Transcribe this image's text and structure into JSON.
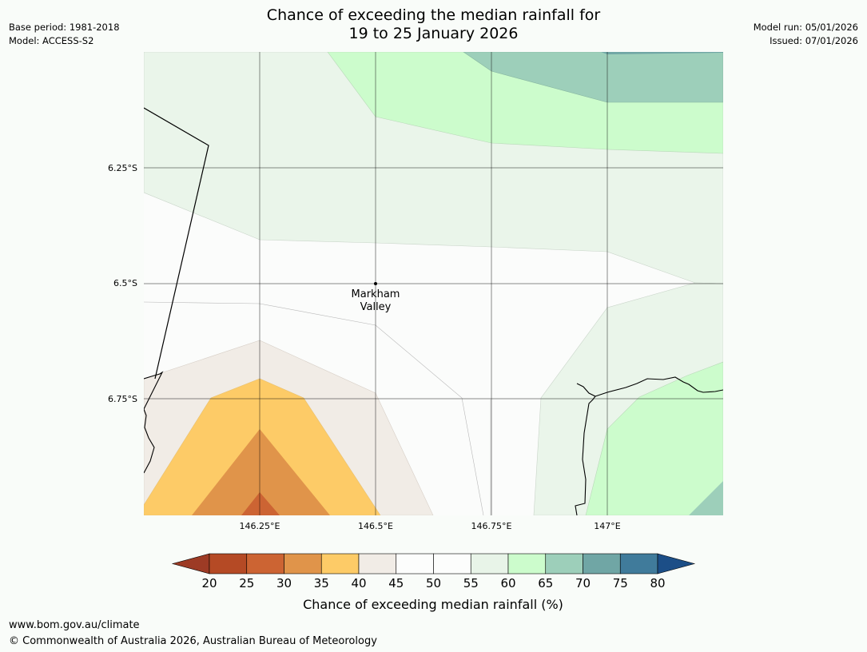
{
  "header": {
    "title_line1": "Chance of exceeding the median rainfall for",
    "title_line2": "19 to 25 January 2026",
    "base_period": "Base period: 1981-2018",
    "model": "Model: ACCESS-S2",
    "model_run": "Model run: 05/01/2026",
    "issued": "Issued: 07/01/2026"
  },
  "map": {
    "lat_ticks": [
      "6.25°S",
      "6.5°S",
      "6.75°S"
    ],
    "lon_ticks": [
      "146.25°E",
      "146.5°E",
      "146.75°E",
      "147°E"
    ],
    "place_marker": {
      "name_line1": "Markham",
      "name_line2": "Valley",
      "lat": "6.5°S",
      "lon": "146.5°E"
    }
  },
  "legend": {
    "label": "Chance of exceeding median rainfall (%)",
    "ticks": [
      "20",
      "25",
      "30",
      "35",
      "40",
      "45",
      "50",
      "55",
      "60",
      "65",
      "70",
      "75",
      "80"
    ],
    "colors": [
      "#9d3b25",
      "#b54a25",
      "#cc6433",
      "#e0944a",
      "#fdcb67",
      "#f1ece6",
      "#fcfdfc",
      "#fcfdfc",
      "#e8f4e8",
      "#ccfccc",
      "#9dcfba",
      "#70a6a5",
      "#407b9b",
      "#1c4e87"
    ]
  },
  "footer": {
    "url": "www.bom.gov.au/climate",
    "copyright": "© Commonwealth of Australia 2026, Australian Bureau of Meteorology"
  }
}
